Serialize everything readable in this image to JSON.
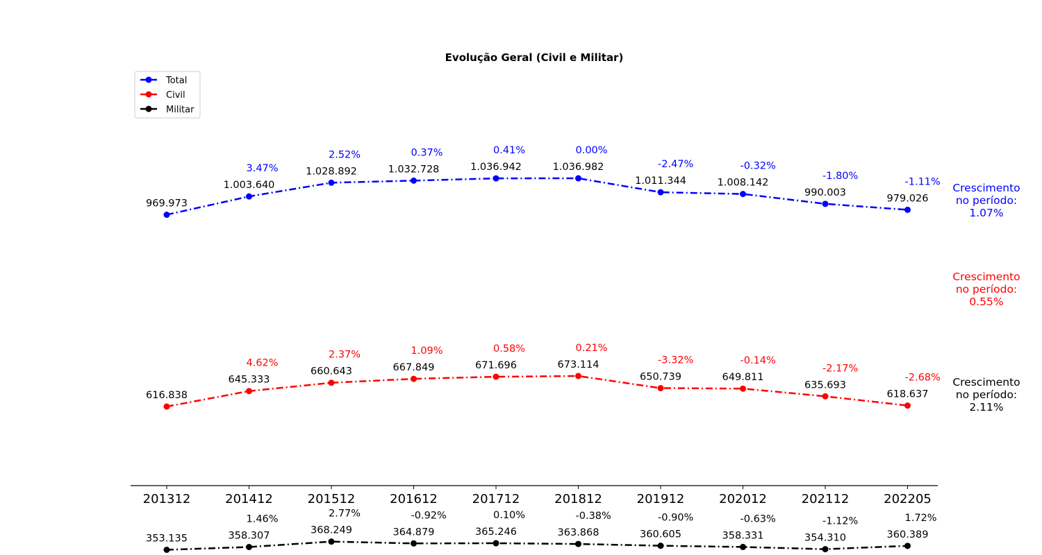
{
  "chart_data": {
    "type": "line",
    "title": "Evolução Geral (Civil e Militar)",
    "xlabel": "",
    "ylabel": "",
    "categories": [
      "201312",
      "201412",
      "201512",
      "201612",
      "201712",
      "201812",
      "201912",
      "202012",
      "202112",
      "202205"
    ],
    "legend_position": "top-left",
    "grid": false,
    "series": [
      {
        "name": "Total",
        "color": "#0000ff",
        "values": [
          969973,
          1003640,
          1028892,
          1032728,
          1036942,
          1036982,
          1011344,
          1008142,
          990003,
          979026
        ],
        "value_labels": [
          "969.973",
          "1.003.640",
          "1.028.892",
          "1.032.728",
          "1.036.942",
          "1.036.982",
          "1.011.344",
          "1.008.142",
          "990.003",
          "979.026"
        ],
        "pct_labels": [
          "",
          "3.47%",
          "2.52%",
          "0.37%",
          "0.41%",
          "0.00%",
          "-2.47%",
          "-0.32%",
          "-1.80%",
          "-1.11%"
        ],
        "growth_text": [
          "Crescimento",
          "no período:",
          "1.07%"
        ]
      },
      {
        "name": "Civil",
        "color": "#ff0000",
        "values": [
          616838,
          645333,
          660643,
          667849,
          671696,
          673114,
          650739,
          649811,
          635693,
          618637
        ],
        "value_labels": [
          "616.838",
          "645.333",
          "660.643",
          "667.849",
          "671.696",
          "673.114",
          "650.739",
          "649.811",
          "635.693",
          "618.637"
        ],
        "pct_labels": [
          "",
          "4.62%",
          "2.37%",
          "1.09%",
          "0.58%",
          "0.21%",
          "-3.32%",
          "-0.14%",
          "-2.17%",
          "-2.68%"
        ],
        "growth_text": [
          "Crescimento",
          "no período:",
          "0.55%"
        ]
      },
      {
        "name": "Militar",
        "color": "#000000",
        "values": [
          353135,
          358307,
          368249,
          364879,
          365246,
          363868,
          360605,
          358331,
          354310,
          360389
        ],
        "value_labels": [
          "353.135",
          "358.307",
          "368.249",
          "364.879",
          "365.246",
          "363.868",
          "360.605",
          "358.331",
          "354.310",
          "360.389"
        ],
        "pct_labels": [
          "",
          "1.46%",
          "2.77%",
          "-0.92%",
          "0.10%",
          "-0.38%",
          "-0.90%",
          "-0.63%",
          "-1.12%",
          "1.72%"
        ],
        "growth_text": [
          "Crescimento",
          "no período:",
          "2.11%"
        ]
      }
    ]
  }
}
